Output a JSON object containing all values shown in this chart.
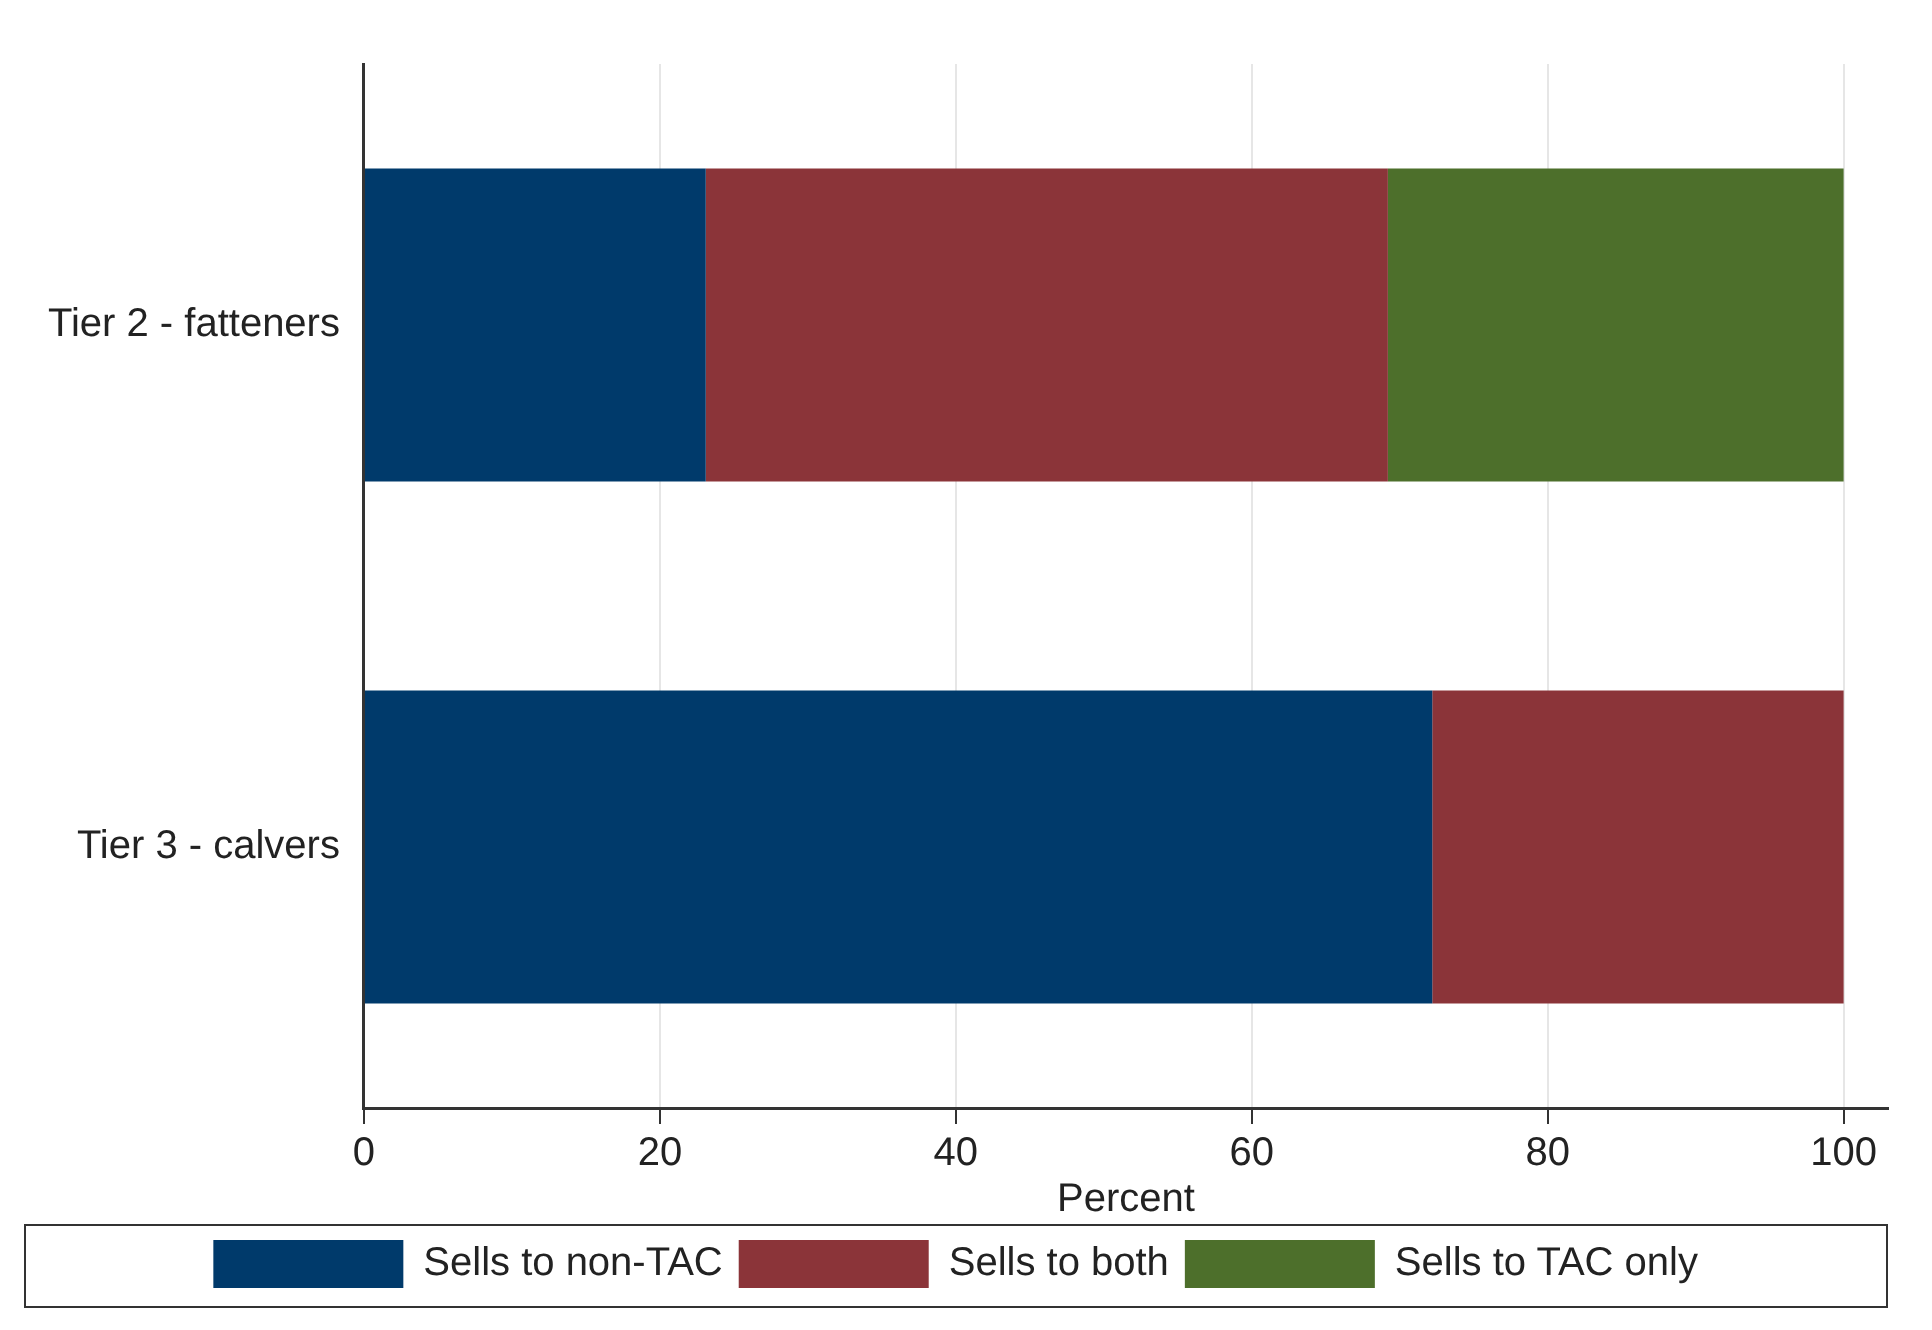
{
  "chart_data": {
    "type": "bar",
    "orientation": "horizontal",
    "stacked": true,
    "categories": [
      "Tier 2 - fatteners",
      "Tier 3 - calvers"
    ],
    "series": [
      {
        "name": "Sells to non-TAC",
        "color": "#003a6b",
        "values": [
          23.1,
          72.2
        ]
      },
      {
        "name": "Sells to both",
        "color": "#8b3439",
        "values": [
          46.1,
          27.8
        ]
      },
      {
        "name": "Sells to TAC only",
        "color": "#4d6f2b",
        "values": [
          30.8,
          0
        ]
      }
    ],
    "xlabel": "Percent",
    "xlim": [
      0,
      103
    ],
    "xticks": [
      0,
      20,
      40,
      60,
      80,
      100
    ],
    "grid": "x",
    "legend": "bottom"
  }
}
